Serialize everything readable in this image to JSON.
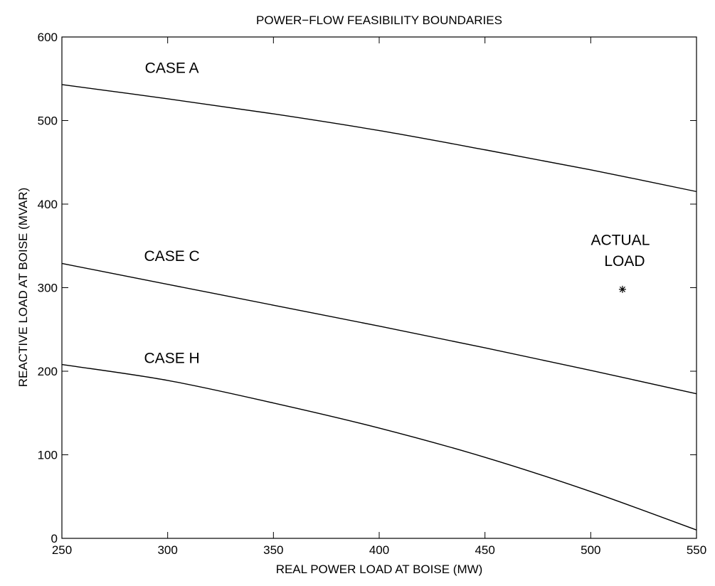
{
  "chart_data": {
    "type": "line",
    "title": "POWER−FLOW FEASIBILITY BOUNDARIES",
    "xlabel": "REAL POWER LOAD AT BOISE (MW)",
    "ylabel": "REACTIVE LOAD AT BOISE (MVAR)",
    "xlim": [
      250,
      550
    ],
    "ylim": [
      0,
      600
    ],
    "x_ticks": [
      250,
      300,
      350,
      400,
      450,
      500,
      550
    ],
    "y_ticks": [
      0,
      100,
      200,
      300,
      400,
      500,
      600
    ],
    "grid": false,
    "series": [
      {
        "name": "CASE A",
        "x": [
          250,
          300,
          350,
          400,
          450,
          500,
          550
        ],
        "y": [
          543,
          526,
          508,
          488,
          465,
          441,
          415
        ]
      },
      {
        "name": "CASE C",
        "x": [
          250,
          300,
          350,
          400,
          450,
          500,
          550
        ],
        "y": [
          329,
          304,
          279,
          254,
          228,
          201,
          173
        ]
      },
      {
        "name": "CASE H",
        "x": [
          250,
          300,
          350,
          400,
          450,
          500,
          550
        ],
        "y": [
          208,
          189,
          162,
          132,
          97,
          56,
          10
        ]
      }
    ],
    "points": [
      {
        "name": "ACTUAL LOAD",
        "x": 515,
        "y": 298,
        "marker": "*"
      }
    ],
    "annotations": [
      {
        "text": "CASE A",
        "x": 302,
        "y": 557
      },
      {
        "text": "CASE C",
        "x": 302,
        "y": 332
      },
      {
        "text": "CASE H",
        "x": 302,
        "y": 210
      },
      {
        "text": "ACTUAL",
        "x": 514,
        "y": 351
      },
      {
        "text": "LOAD",
        "x": 516,
        "y": 326
      }
    ]
  }
}
